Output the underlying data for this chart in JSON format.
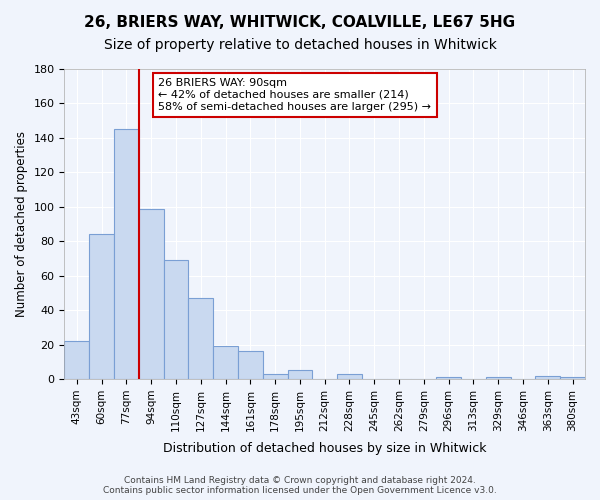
{
  "title": "26, BRIERS WAY, WHITWICK, COALVILLE, LE67 5HG",
  "subtitle": "Size of property relative to detached houses in Whitwick",
  "xlabel": "Distribution of detached houses by size in Whitwick",
  "ylabel": "Number of detached properties",
  "bar_labels": [
    "43sqm",
    "60sqm",
    "77sqm",
    "94sqm",
    "110sqm",
    "127sqm",
    "144sqm",
    "161sqm",
    "178sqm",
    "195sqm",
    "212sqm",
    "228sqm",
    "245sqm",
    "262sqm",
    "279sqm",
    "296sqm",
    "313sqm",
    "329sqm",
    "346sqm",
    "363sqm",
    "380sqm"
  ],
  "bar_values": [
    22,
    84,
    145,
    99,
    69,
    47,
    19,
    16,
    3,
    5,
    0,
    3,
    0,
    0,
    0,
    1,
    0,
    1,
    0,
    2,
    1
  ],
  "bar_color": "#c9d9f0",
  "bar_edge_color": "#7a9fd4",
  "vline_color": "#cc0000",
  "annotation_title": "26 BRIERS WAY: 90sqm",
  "annotation_line1": "← 42% of detached houses are smaller (214)",
  "annotation_line2": "58% of semi-detached houses are larger (295) →",
  "annotation_box_color": "#ffffff",
  "annotation_box_edge": "#cc0000",
  "ylim": [
    0,
    180
  ],
  "yticks": [
    0,
    20,
    40,
    60,
    80,
    100,
    120,
    140,
    160,
    180
  ],
  "footer_line1": "Contains HM Land Registry data © Crown copyright and database right 2024.",
  "footer_line2": "Contains public sector information licensed under the Open Government Licence v3.0.",
  "bg_color": "#f0f4fc",
  "grid_color": "#ffffff",
  "title_fontsize": 11,
  "subtitle_fontsize": 10
}
